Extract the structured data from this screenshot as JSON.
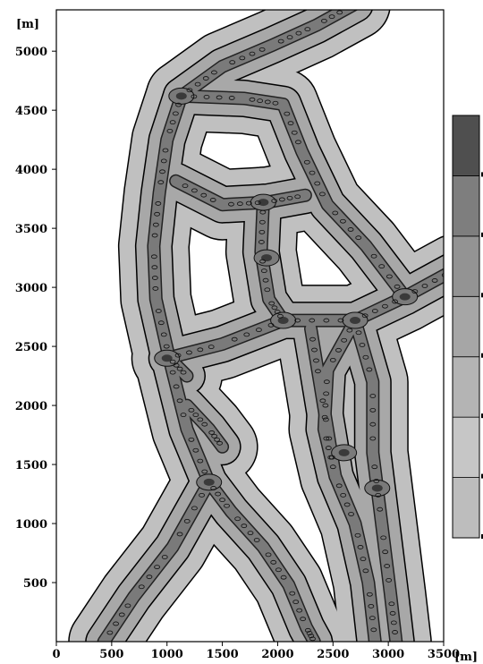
{
  "chart_data": {
    "type": "heatmap",
    "title": "",
    "xlabel": "[m]",
    "ylabel": "[m]",
    "xlim": [
      0,
      3500
    ],
    "ylim": [
      0,
      5350
    ],
    "x_ticks": [
      0,
      500,
      1000,
      1500,
      2000,
      2500,
      3000,
      3500
    ],
    "y_ticks": [
      500,
      1000,
      1500,
      2000,
      2500,
      3000,
      3500,
      4000,
      4500,
      5000
    ],
    "colorbar_levels": 7,
    "colorbar_colors": [
      "#bdbdbd",
      "#c6c6c6",
      "#b4b4b4",
      "#a6a6a6",
      "#939393",
      "#7e7e7e",
      "#4f4f4f"
    ],
    "field_colors": {
      "outer_band": "#c0c0c0",
      "inner_band": "#a8a8a8",
      "core": "#7a7a7a",
      "peak": "#3a3a3a",
      "background": "#ffffff"
    },
    "grid": false
  }
}
